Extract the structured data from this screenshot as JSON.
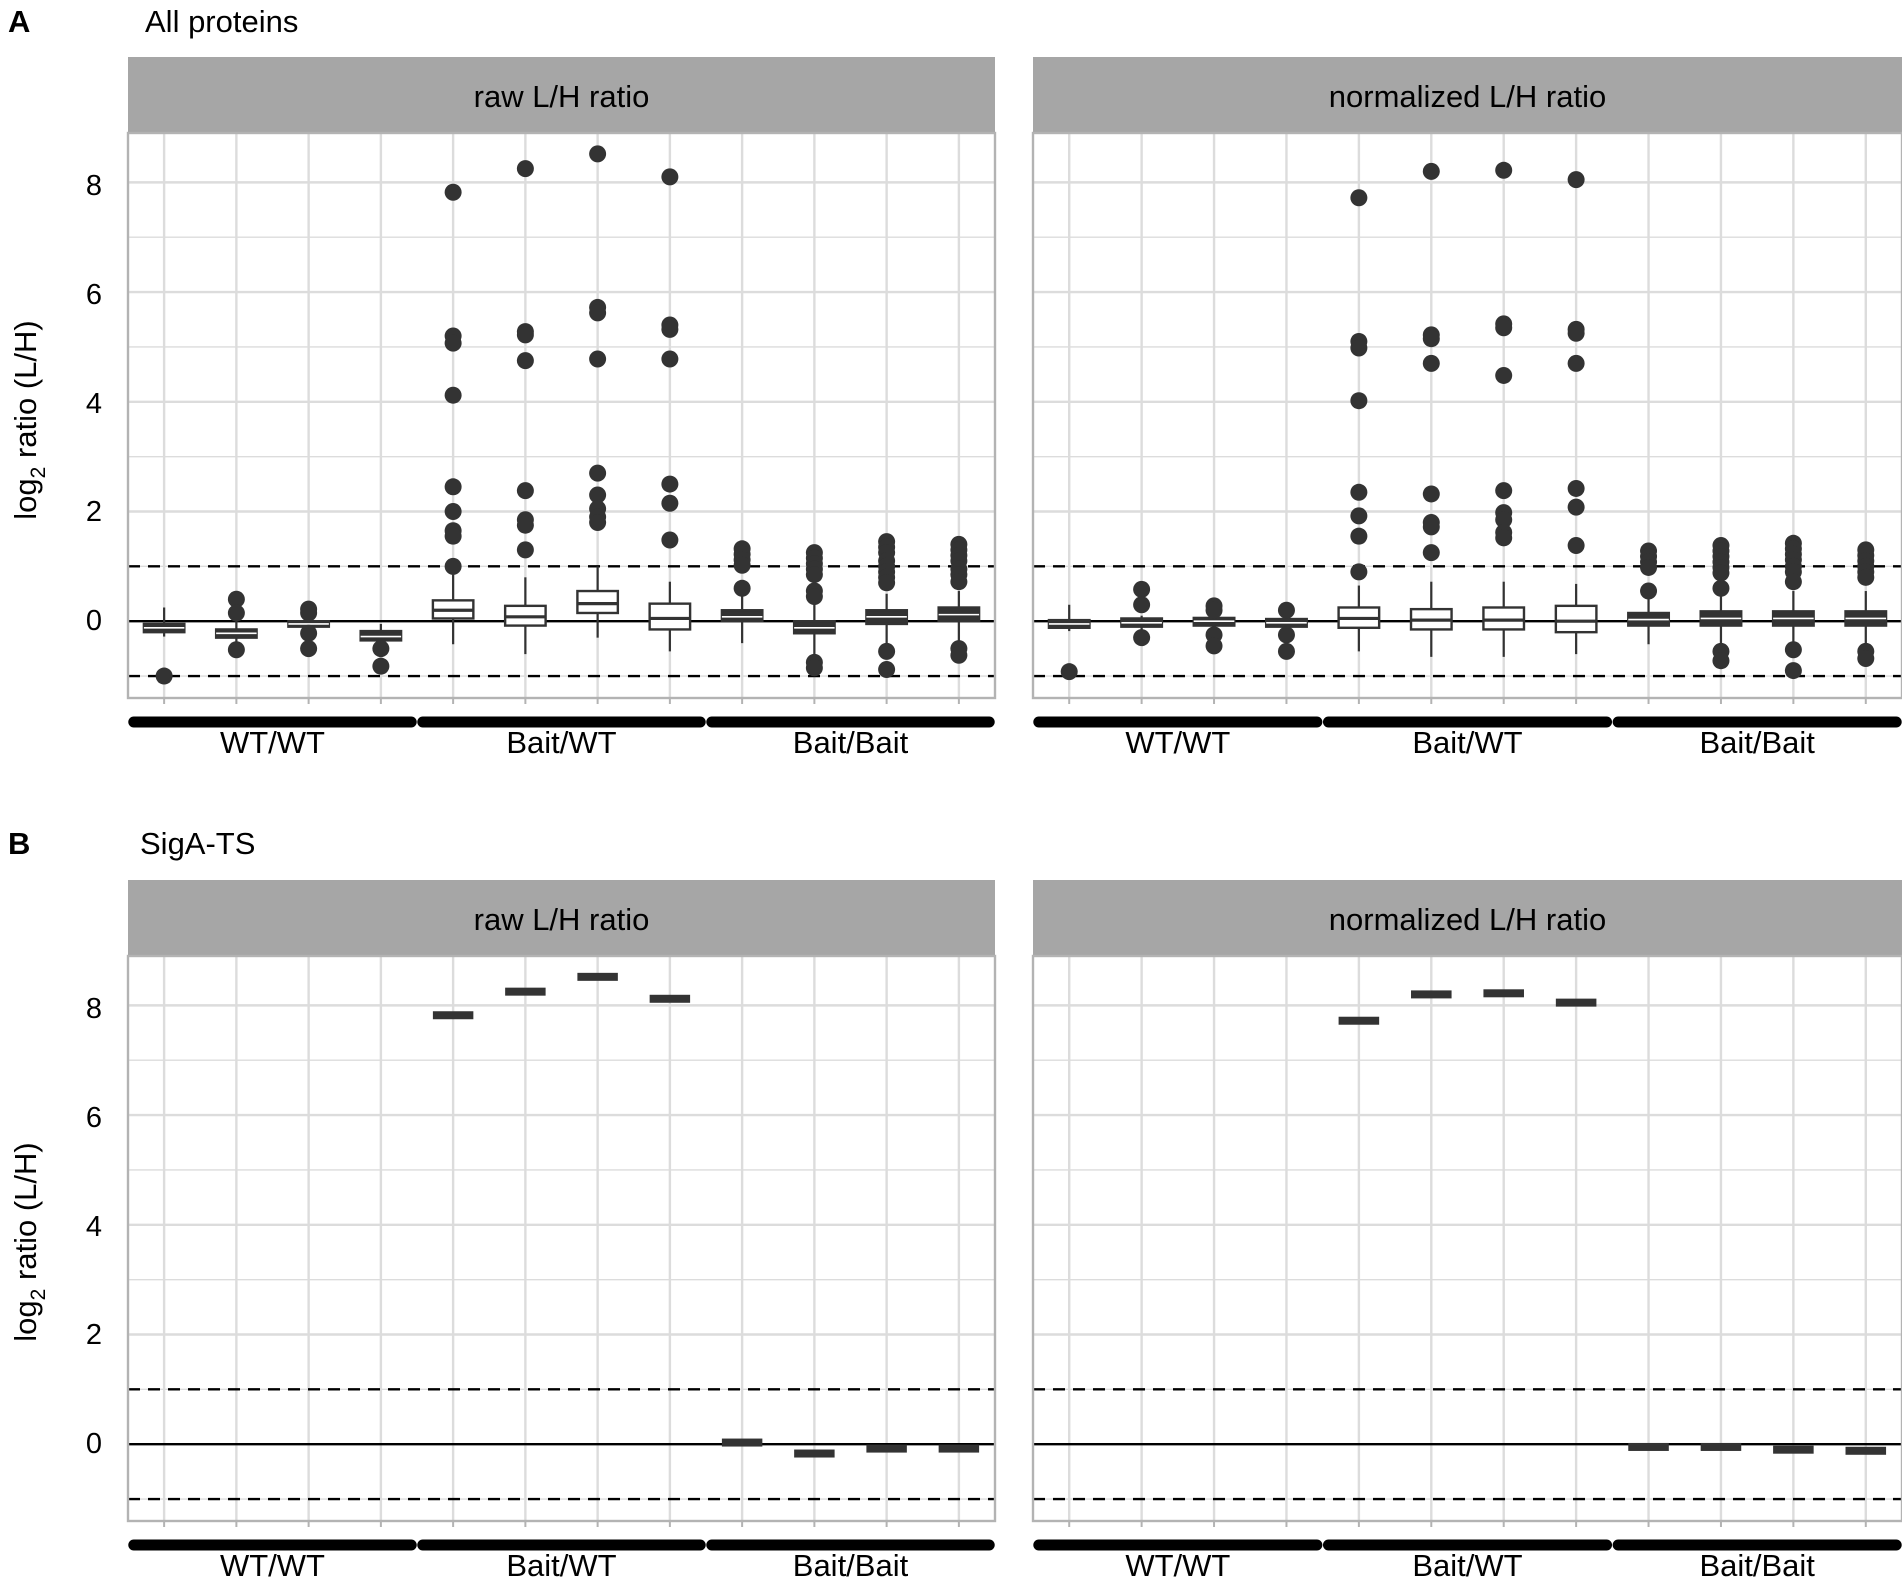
{
  "figure": {
    "panels": [
      {
        "letter": "A",
        "title": "All proteins"
      },
      {
        "letter": "B",
        "title": "SigA-TS"
      }
    ],
    "facets": [
      "raw L/H ratio",
      "normalized L/H ratio"
    ],
    "groups": [
      "WT/WT",
      "Bait/WT",
      "Bait/Bait"
    ],
    "ylabel_main": "log",
    "ylabel_sub": "2",
    "ylabel_rest": " ratio (L/H)",
    "yticks": [
      "8",
      "6",
      "4",
      "2",
      "0"
    ],
    "colors": {
      "strip": "#a6a6a6",
      "grid": "#dcdcdc",
      "box": "#333333",
      "box_light_fill": "#ffffff",
      "point": "#333333"
    }
  },
  "chart_data": [
    {
      "type": "box",
      "panel": "A",
      "facet": "raw L/H ratio",
      "ylim": [
        -1.4,
        8.9
      ],
      "ref_lines": {
        "solid": 0,
        "dashed": [
          1,
          -1
        ]
      },
      "groups": [
        "WT/WT",
        "Bait/WT",
        "Bait/Bait"
      ],
      "boxes": [
        {
          "group": "WT/WT",
          "q1": -0.2,
          "median": -0.12,
          "q3": -0.05,
          "wlo": -0.28,
          "whi": 0.25,
          "out": [
            -1.0
          ],
          "fill": "dark"
        },
        {
          "group": "WT/WT",
          "q1": -0.3,
          "median": -0.22,
          "q3": -0.15,
          "wlo": -0.38,
          "whi": 0.0,
          "out": [
            0.4,
            0.15,
            -0.52
          ],
          "fill": "dark"
        },
        {
          "group": "WT/WT",
          "q1": -0.1,
          "median": -0.05,
          "q3": 0.0,
          "wlo": -0.15,
          "whi": 0.05,
          "out": [
            0.22,
            0.15,
            -0.22,
            -0.5
          ],
          "fill": "dark"
        },
        {
          "group": "WT/WT",
          "q1": -0.35,
          "median": -0.28,
          "q3": -0.18,
          "wlo": -0.4,
          "whi": -0.05,
          "out": [
            -0.5,
            -0.82
          ],
          "fill": "dark"
        },
        {
          "group": "Bait/WT",
          "q1": 0.05,
          "median": 0.2,
          "q3": 0.38,
          "wlo": -0.42,
          "whi": 0.85,
          "out": [
            7.82,
            5.2,
            5.07,
            4.12,
            2.45,
            2.0,
            1.65,
            1.55,
            1.0
          ],
          "fill": "light"
        },
        {
          "group": "Bait/WT",
          "q1": -0.08,
          "median": 0.08,
          "q3": 0.28,
          "wlo": -0.6,
          "whi": 0.8,
          "out": [
            8.25,
            5.28,
            5.22,
            4.75,
            2.38,
            1.85,
            1.75,
            1.3
          ],
          "fill": "light"
        },
        {
          "group": "Bait/WT",
          "q1": 0.15,
          "median": 0.32,
          "q3": 0.55,
          "wlo": -0.3,
          "whi": 1.0,
          "out": [
            8.52,
            5.72,
            5.62,
            4.78,
            2.7,
            2.3,
            2.05,
            1.9,
            1.8
          ],
          "fill": "light"
        },
        {
          "group": "Bait/WT",
          "q1": -0.15,
          "median": 0.05,
          "q3": 0.32,
          "wlo": -0.55,
          "whi": 0.72,
          "out": [
            8.1,
            5.4,
            5.32,
            4.78,
            2.5,
            2.15,
            1.48
          ],
          "fill": "light"
        },
        {
          "group": "Bait/Bait",
          "q1": 0.0,
          "median": 0.08,
          "q3": 0.2,
          "wlo": -0.4,
          "whi": 0.5,
          "out": [
            1.32,
            1.22,
            1.12,
            1.02,
            0.6
          ],
          "fill": "dark"
        },
        {
          "group": "Bait/Bait",
          "q1": -0.22,
          "median": -0.12,
          "q3": 0.0,
          "wlo": -0.6,
          "whi": 0.35,
          "out": [
            1.25,
            1.15,
            1.05,
            0.95,
            0.85,
            0.55,
            0.45,
            -0.75,
            -0.85
          ],
          "fill": "dark"
        },
        {
          "group": "Bait/Bait",
          "q1": -0.05,
          "median": 0.08,
          "q3": 0.2,
          "wlo": -0.4,
          "whi": 0.5,
          "out": [
            1.45,
            1.35,
            1.25,
            1.1,
            1.0,
            0.9,
            0.8,
            0.7,
            -0.55,
            -0.88
          ],
          "fill": "dark"
        },
        {
          "group": "Bait/Bait",
          "q1": 0.0,
          "median": 0.12,
          "q3": 0.25,
          "wlo": -0.4,
          "whi": 0.55,
          "out": [
            1.4,
            1.3,
            1.2,
            1.1,
            0.95,
            0.85,
            0.72,
            -0.5,
            -0.62
          ],
          "fill": "dark"
        }
      ]
    },
    {
      "type": "box",
      "panel": "A",
      "facet": "normalized L/H ratio",
      "ylim": [
        -1.4,
        8.9
      ],
      "ref_lines": {
        "solid": 0,
        "dashed": [
          1,
          -1
        ]
      },
      "groups": [
        "WT/WT",
        "Bait/WT",
        "Bait/Bait"
      ],
      "boxes": [
        {
          "group": "WT/WT",
          "q1": -0.12,
          "median": -0.05,
          "q3": 0.02,
          "wlo": -0.18,
          "whi": 0.3,
          "out": [
            -0.92
          ],
          "fill": "dark"
        },
        {
          "group": "WT/WT",
          "q1": -0.1,
          "median": -0.03,
          "q3": 0.05,
          "wlo": -0.18,
          "whi": 0.1,
          "out": [
            0.58,
            0.3,
            -0.3
          ],
          "fill": "dark"
        },
        {
          "group": "WT/WT",
          "q1": -0.08,
          "median": 0.0,
          "q3": 0.06,
          "wlo": -0.15,
          "whi": 0.12,
          "out": [
            0.28,
            0.2,
            -0.25,
            -0.45
          ],
          "fill": "dark"
        },
        {
          "group": "WT/WT",
          "q1": -0.1,
          "median": -0.03,
          "q3": 0.04,
          "wlo": -0.15,
          "whi": 0.1,
          "out": [
            0.2,
            -0.25,
            -0.55
          ],
          "fill": "dark"
        },
        {
          "group": "Bait/WT",
          "q1": -0.12,
          "median": 0.05,
          "q3": 0.25,
          "wlo": -0.55,
          "whi": 0.65,
          "out": [
            7.72,
            5.1,
            4.98,
            4.02,
            2.35,
            1.92,
            1.55,
            0.9
          ],
          "fill": "light"
        },
        {
          "group": "Bait/WT",
          "q1": -0.15,
          "median": 0.02,
          "q3": 0.22,
          "wlo": -0.65,
          "whi": 0.72,
          "out": [
            8.2,
            5.22,
            5.15,
            4.7,
            2.32,
            1.8,
            1.72,
            1.25
          ],
          "fill": "light"
        },
        {
          "group": "Bait/WT",
          "q1": -0.15,
          "median": 0.02,
          "q3": 0.25,
          "wlo": -0.65,
          "whi": 0.72,
          "out": [
            8.22,
            5.42,
            5.35,
            4.48,
            2.38,
            1.98,
            1.85,
            1.62,
            1.52
          ],
          "fill": "light"
        },
        {
          "group": "Bait/WT",
          "q1": -0.2,
          "median": 0.0,
          "q3": 0.28,
          "wlo": -0.6,
          "whi": 0.68,
          "out": [
            8.05,
            5.32,
            5.25,
            4.7,
            2.42,
            2.08,
            1.38
          ],
          "fill": "light"
        },
        {
          "group": "Bait/Bait",
          "q1": -0.08,
          "median": 0.03,
          "q3": 0.15,
          "wlo": -0.42,
          "whi": 0.52,
          "out": [
            1.28,
            1.18,
            1.08,
            0.98,
            0.55
          ],
          "fill": "dark"
        },
        {
          "group": "Bait/Bait",
          "q1": -0.08,
          "median": 0.05,
          "q3": 0.18,
          "wlo": -0.45,
          "whi": 0.55,
          "out": [
            1.38,
            1.28,
            1.18,
            1.08,
            0.98,
            0.88,
            0.6,
            -0.55,
            -0.72
          ],
          "fill": "dark"
        },
        {
          "group": "Bait/Bait",
          "q1": -0.08,
          "median": 0.05,
          "q3": 0.18,
          "wlo": -0.45,
          "whi": 0.55,
          "out": [
            1.42,
            1.32,
            1.22,
            1.12,
            1.0,
            0.9,
            0.72,
            -0.52,
            -0.9
          ],
          "fill": "dark"
        },
        {
          "group": "Bait/Bait",
          "q1": -0.08,
          "median": 0.05,
          "q3": 0.18,
          "wlo": -0.45,
          "whi": 0.55,
          "out": [
            1.3,
            1.2,
            1.1,
            1.0,
            0.9,
            0.8,
            -0.55,
            -0.68
          ],
          "fill": "dark"
        }
      ]
    },
    {
      "type": "box",
      "panel": "B",
      "facet": "raw L/H ratio",
      "ylim": [
        -1.4,
        8.9
      ],
      "ref_lines": {
        "solid": 0,
        "dashed": [
          1,
          -1
        ]
      },
      "groups": [
        "WT/WT",
        "Bait/WT",
        "Bait/Bait"
      ],
      "boxes": [
        {
          "group": "WT/WT",
          "value": null
        },
        {
          "group": "WT/WT",
          "value": null
        },
        {
          "group": "WT/WT",
          "value": null
        },
        {
          "group": "WT/WT",
          "value": null
        },
        {
          "group": "Bait/WT",
          "value": 7.82
        },
        {
          "group": "Bait/WT",
          "value": 8.25
        },
        {
          "group": "Bait/WT",
          "value": 8.52
        },
        {
          "group": "Bait/WT",
          "value": 8.12
        },
        {
          "group": "Bait/Bait",
          "value": 0.03
        },
        {
          "group": "Bait/Bait",
          "value": -0.17
        },
        {
          "group": "Bait/Bait",
          "value": -0.08
        },
        {
          "group": "Bait/Bait",
          "value": -0.08
        }
      ]
    },
    {
      "type": "box",
      "panel": "B",
      "facet": "normalized L/H ratio",
      "ylim": [
        -1.4,
        8.9
      ],
      "ref_lines": {
        "solid": 0,
        "dashed": [
          1,
          -1
        ]
      },
      "groups": [
        "WT/WT",
        "Bait/WT",
        "Bait/Bait"
      ],
      "boxes": [
        {
          "group": "WT/WT",
          "value": null
        },
        {
          "group": "WT/WT",
          "value": null
        },
        {
          "group": "WT/WT",
          "value": null
        },
        {
          "group": "WT/WT",
          "value": null
        },
        {
          "group": "Bait/WT",
          "value": 7.72
        },
        {
          "group": "Bait/WT",
          "value": 8.2
        },
        {
          "group": "Bait/WT",
          "value": 8.22
        },
        {
          "group": "Bait/WT",
          "value": 8.05
        },
        {
          "group": "Bait/Bait",
          "value": -0.05
        },
        {
          "group": "Bait/Bait",
          "value": -0.05
        },
        {
          "group": "Bait/Bait",
          "value": -0.1
        },
        {
          "group": "Bait/Bait",
          "value": -0.12
        }
      ]
    }
  ]
}
